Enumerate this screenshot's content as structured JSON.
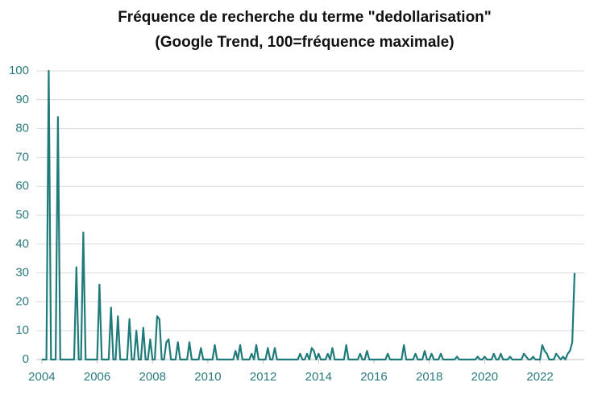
{
  "chart_data": {
    "type": "line",
    "title": "Fréquence de recherche du terme \"dedollarisation\"",
    "subtitle": "(Google Trend, 100=fréquence maximale)",
    "color": "#1f7a7a",
    "grid": true,
    "xlim": [
      2003.8,
      2023.6
    ],
    "xticks": [
      2004,
      2006,
      2008,
      2010,
      2012,
      2014,
      2016,
      2018,
      2020,
      2022
    ],
    "ylim": [
      0,
      100
    ],
    "yticks": [
      0,
      10,
      20,
      30,
      40,
      50,
      60,
      70,
      80,
      90,
      100
    ],
    "x": [
      2004,
      2004.083,
      2004.167,
      2004.25,
      2004.333,
      2004.417,
      2004.5,
      2004.583,
      2004.667,
      2004.75,
      2004.833,
      2004.917,
      2005,
      2005.083,
      2005.167,
      2005.25,
      2005.333,
      2005.417,
      2005.5,
      2005.583,
      2005.667,
      2005.75,
      2005.833,
      2005.917,
      2006,
      2006.083,
      2006.167,
      2006.25,
      2006.333,
      2006.417,
      2006.5,
      2006.583,
      2006.667,
      2006.75,
      2006.833,
      2006.917,
      2007,
      2007.083,
      2007.167,
      2007.25,
      2007.333,
      2007.417,
      2007.5,
      2007.583,
      2007.667,
      2007.75,
      2007.833,
      2007.917,
      2008,
      2008.083,
      2008.167,
      2008.25,
      2008.333,
      2008.417,
      2008.5,
      2008.583,
      2008.667,
      2008.75,
      2008.833,
      2008.917,
      2009,
      2009.083,
      2009.167,
      2009.25,
      2009.333,
      2009.417,
      2009.5,
      2009.583,
      2009.667,
      2009.75,
      2009.833,
      2009.917,
      2010,
      2010.083,
      2010.167,
      2010.25,
      2010.333,
      2010.417,
      2010.5,
      2010.583,
      2010.667,
      2010.75,
      2010.833,
      2010.917,
      2011,
      2011.083,
      2011.167,
      2011.25,
      2011.333,
      2011.417,
      2011.5,
      2011.583,
      2011.667,
      2011.75,
      2011.833,
      2011.917,
      2012,
      2012.083,
      2012.167,
      2012.25,
      2012.333,
      2012.417,
      2012.5,
      2012.583,
      2012.667,
      2012.75,
      2012.833,
      2012.917,
      2013,
      2013.083,
      2013.167,
      2013.25,
      2013.333,
      2013.417,
      2013.5,
      2013.583,
      2013.667,
      2013.75,
      2013.833,
      2013.917,
      2014,
      2014.083,
      2014.167,
      2014.25,
      2014.333,
      2014.417,
      2014.5,
      2014.583,
      2014.667,
      2014.75,
      2014.833,
      2014.917,
      2015,
      2015.083,
      2015.167,
      2015.25,
      2015.333,
      2015.417,
      2015.5,
      2015.583,
      2015.667,
      2015.75,
      2015.833,
      2015.917,
      2016,
      2016.083,
      2016.167,
      2016.25,
      2016.333,
      2016.417,
      2016.5,
      2016.583,
      2016.667,
      2016.75,
      2016.833,
      2016.917,
      2017,
      2017.083,
      2017.167,
      2017.25,
      2017.333,
      2017.417,
      2017.5,
      2017.583,
      2017.667,
      2017.75,
      2017.833,
      2017.917,
      2018,
      2018.083,
      2018.167,
      2018.25,
      2018.333,
      2018.417,
      2018.5,
      2018.583,
      2018.667,
      2018.75,
      2018.833,
      2018.917,
      2019,
      2019.083,
      2019.167,
      2019.25,
      2019.333,
      2019.417,
      2019.5,
      2019.583,
      2019.667,
      2019.75,
      2019.833,
      2019.917,
      2020,
      2020.083,
      2020.167,
      2020.25,
      2020.333,
      2020.417,
      2020.5,
      2020.583,
      2020.667,
      2020.75,
      2020.833,
      2020.917,
      2021,
      2021.083,
      2021.167,
      2021.25,
      2021.333,
      2021.417,
      2021.5,
      2021.583,
      2021.667,
      2021.75,
      2021.833,
      2021.917,
      2022,
      2022.083,
      2022.167,
      2022.25,
      2022.333,
      2022.417,
      2022.5,
      2022.583,
      2022.667,
      2022.75,
      2022.833,
      2022.917,
      2023,
      2023.083,
      2023.167,
      2023.25
    ],
    "values": [
      0,
      0,
      0,
      100,
      0,
      0,
      0,
      84,
      0,
      0,
      0,
      0,
      0,
      0,
      0,
      32,
      0,
      0,
      44,
      0,
      0,
      0,
      0,
      0,
      0,
      26,
      0,
      0,
      0,
      0,
      18,
      0,
      0,
      15,
      0,
      0,
      0,
      0,
      14,
      0,
      0,
      10,
      0,
      0,
      11,
      0,
      0,
      7,
      0,
      0,
      15,
      14,
      0,
      0,
      6,
      7,
      0,
      0,
      0,
      6,
      0,
      0,
      0,
      0,
      6,
      0,
      0,
      0,
      0,
      4,
      0,
      0,
      0,
      0,
      0,
      5,
      0,
      0,
      0,
      0,
      0,
      0,
      0,
      0,
      3,
      0,
      5,
      0,
      0,
      0,
      0,
      2,
      0,
      5,
      0,
      0,
      0,
      0,
      4,
      0,
      0,
      4,
      0,
      0,
      0,
      0,
      0,
      0,
      0,
      0,
      0,
      0,
      2,
      0,
      0,
      2,
      0,
      4,
      3,
      0,
      2,
      0,
      0,
      0,
      2,
      0,
      4,
      0,
      0,
      0,
      0,
      0,
      5,
      0,
      0,
      0,
      0,
      0,
      2,
      0,
      0,
      3,
      0,
      0,
      0,
      0,
      0,
      0,
      0,
      0,
      2,
      0,
      0,
      0,
      0,
      0,
      0,
      5,
      0,
      0,
      0,
      0,
      2,
      0,
      0,
      0,
      3,
      0,
      0,
      2,
      0,
      0,
      0,
      2,
      0,
      0,
      0,
      0,
      0,
      0,
      1,
      0,
      0,
      0,
      0,
      0,
      0,
      0,
      0,
      1,
      0,
      0,
      1,
      0,
      0,
      0,
      2,
      0,
      0,
      2,
      0,
      0,
      0,
      1,
      0,
      0,
      0,
      0,
      0,
      2,
      1,
      0,
      0,
      1,
      0,
      0,
      0,
      5,
      3,
      2,
      0,
      0,
      0,
      2,
      1,
      0,
      1,
      0,
      2,
      3,
      6,
      30
    ]
  }
}
